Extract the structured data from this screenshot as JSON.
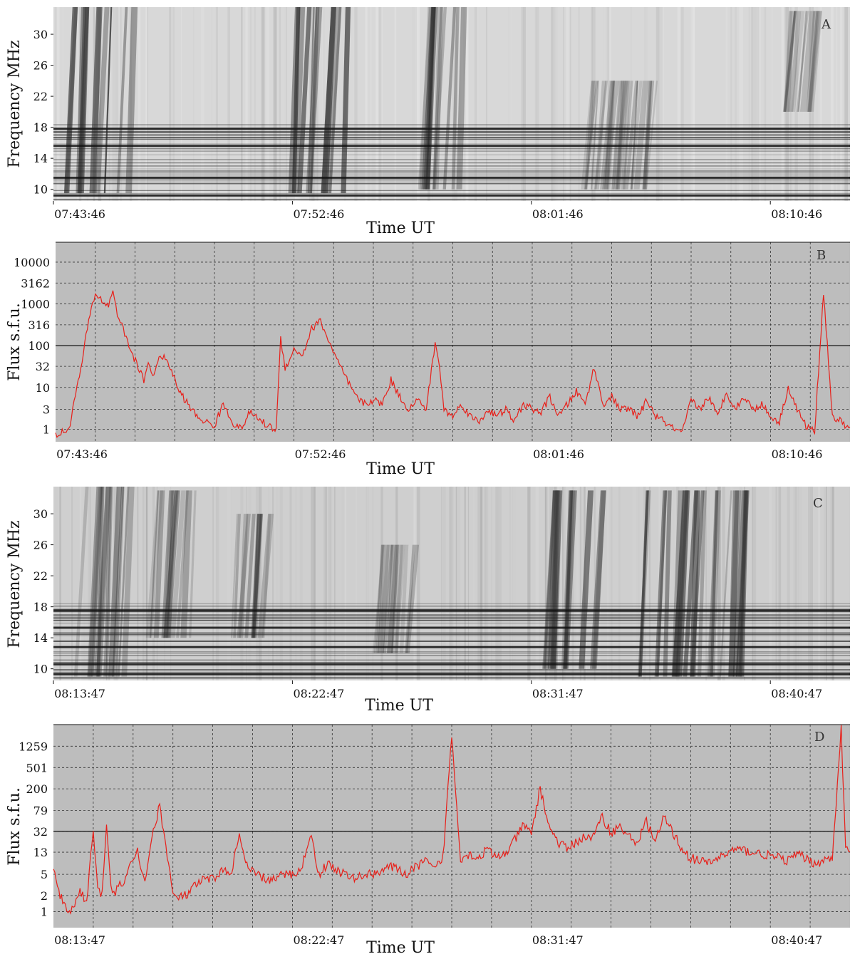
{
  "chart_data": [
    {
      "panel": "A",
      "type": "heatmap",
      "xlabel": "Time UT",
      "ylabel": "Frequency MHz",
      "x_ticks": [
        "07:43:46",
        "07:52:46",
        "08:01:46",
        "08:10:46"
      ],
      "y_ticks": [
        10,
        14,
        18,
        22,
        26,
        30
      ],
      "ylim": [
        8.5,
        33.5
      ],
      "xlim_seconds": [
        0,
        1800
      ],
      "colormap": "grayscale (dark = high intensity)",
      "bursts": [
        {
          "t": 120,
          "f_lo": 9.5,
          "f_hi": 33.5,
          "strength": 1.0
        },
        {
          "t": 600,
          "f_lo": 9.5,
          "f_hi": 33.5,
          "strength": 0.95
        },
        {
          "t": 870,
          "f_lo": 10,
          "f_hi": 33.5,
          "strength": 0.55
        },
        {
          "t": 1240,
          "f_lo": 10,
          "f_hi": 24,
          "strength": 0.4
        },
        {
          "t": 1320,
          "f_lo": 10,
          "f_hi": 24,
          "strength": 0.45
        },
        {
          "t": 1690,
          "f_lo": 20,
          "f_hi": 33,
          "strength": 0.35
        }
      ],
      "interference_bands_MHz": [
        17.8,
        15.6,
        11.5,
        9.2
      ]
    },
    {
      "panel": "B",
      "type": "line",
      "xlabel": "Time UT",
      "ylabel": "Flux s.f.u.",
      "x_ticks": [
        "07:43:46",
        "07:52:46",
        "08:01:46",
        "08:10:46"
      ],
      "y_ticks": [
        "10000",
        "3162",
        "1000",
        "316",
        "100",
        "32",
        "10",
        "3",
        "1"
      ],
      "y_scale": "log",
      "ylim": [
        0.5,
        30000
      ],
      "reference_line": 100,
      "grid": true,
      "series_color": "#e8201a",
      "series": [
        {
          "x_seconds": [
            0,
            30,
            60,
            75,
            90,
            105,
            120,
            130,
            140,
            150,
            160,
            175,
            190,
            200,
            210,
            220,
            240,
            260,
            280,
            300,
            320,
            340,
            360,
            380,
            400,
            420,
            440,
            460,
            480,
            500,
            510,
            520,
            540,
            560,
            580,
            600,
            620,
            640,
            660,
            680,
            700,
            720,
            740,
            760,
            780,
            800,
            820,
            840,
            860,
            870,
            880,
            900,
            920,
            940,
            960,
            980,
            1000,
            1020,
            1040,
            1060,
            1080,
            1100,
            1120,
            1140,
            1160,
            1180,
            1200,
            1220,
            1240,
            1260,
            1280,
            1300,
            1320,
            1340,
            1360,
            1380,
            1400,
            1420,
            1440,
            1460,
            1480,
            1500,
            1520,
            1540,
            1560,
            1580,
            1600,
            1620,
            1640,
            1660,
            1680,
            1700,
            1720,
            1740,
            1760,
            1780,
            1800
          ],
          "values": [
            0.7,
            1.0,
            40,
            400,
            1800,
            1200,
            900,
            2100,
            600,
            300,
            150,
            60,
            25,
            15,
            40,
            20,
            60,
            30,
            8,
            4,
            2,
            1.5,
            1.2,
            4,
            1.5,
            1.0,
            2.5,
            1.8,
            1.2,
            1.0,
            150,
            30,
            80,
            60,
            250,
            400,
            120,
            40,
            15,
            6,
            4,
            5,
            4,
            15,
            6,
            3,
            5,
            3,
            120,
            30,
            3,
            2,
            4,
            2,
            1.5,
            3,
            2,
            3,
            1.5,
            4,
            3,
            2.5,
            6,
            2,
            4,
            8,
            4,
            30,
            4,
            6,
            3,
            3,
            2,
            5,
            2,
            1.5,
            1.0,
            0.8,
            5,
            3,
            6,
            2,
            8,
            3,
            6,
            3,
            4,
            2,
            1.5,
            10,
            3,
            1.2,
            0.9,
            2000,
            2,
            1.5,
            1.0
          ]
        }
      ]
    },
    {
      "panel": "C",
      "type": "heatmap",
      "xlabel": "Time UT",
      "ylabel": "Frequency MHz",
      "x_ticks": [
        "08:13:47",
        "08:22:47",
        "08:31:47",
        "08:40:47"
      ],
      "y_ticks": [
        10,
        14,
        18,
        22,
        26,
        30
      ],
      "ylim": [
        8.5,
        33.5
      ],
      "xlim_seconds": [
        0,
        1800
      ],
      "colormap": "grayscale (dark = high intensity)",
      "bursts": [
        {
          "t": 120,
          "f_lo": 9,
          "f_hi": 33.5,
          "strength": 0.55
        },
        {
          "t": 280,
          "f_lo": 14,
          "f_hi": 33,
          "strength": 0.45
        },
        {
          "t": 440,
          "f_lo": 14,
          "f_hi": 30,
          "strength": 0.45
        },
        {
          "t": 780,
          "f_lo": 12,
          "f_hi": 26,
          "strength": 0.35
        },
        {
          "t": 1180,
          "f_lo": 10,
          "f_hi": 33,
          "strength": 0.75
        },
        {
          "t": 1400,
          "f_lo": 9,
          "f_hi": 33,
          "strength": 0.8
        },
        {
          "t": 1520,
          "f_lo": 9,
          "f_hi": 33,
          "strength": 0.6
        }
      ],
      "interference_bands_MHz": [
        17.5,
        15.3,
        12.8,
        10.6,
        9.3
      ]
    },
    {
      "panel": "D",
      "type": "line",
      "xlabel": "Time UT",
      "ylabel": "Flux s.f.u.",
      "x_ticks": [
        "08:13:47",
        "08:22:47",
        "08:31:47",
        "08:40:47"
      ],
      "y_ticks": [
        "1259",
        "501",
        "200",
        "79",
        "32",
        "13",
        "5",
        "2",
        "1"
      ],
      "y_scale": "log",
      "ylim": [
        0.5,
        3200
      ],
      "reference_line": 32,
      "grid": true,
      "series_color": "#e8201a",
      "series": [
        {
          "x_seconds": [
            0,
            15,
            30,
            45,
            60,
            75,
            90,
            100,
            110,
            120,
            130,
            140,
            150,
            160,
            175,
            190,
            200,
            210,
            220,
            240,
            260,
            270,
            280,
            300,
            320,
            340,
            360,
            380,
            400,
            420,
            440,
            460,
            480,
            500,
            520,
            540,
            560,
            580,
            600,
            620,
            640,
            660,
            680,
            700,
            720,
            740,
            760,
            780,
            800,
            820,
            840,
            860,
            880,
            900,
            920,
            940,
            960,
            980,
            1000,
            1020,
            1040,
            1060,
            1080,
            1100,
            1120,
            1140,
            1160,
            1180,
            1200,
            1220,
            1240,
            1260,
            1280,
            1300,
            1320,
            1340,
            1360,
            1380,
            1400,
            1420,
            1440,
            1460,
            1480,
            1500,
            1520,
            1540,
            1560,
            1580,
            1600,
            1620,
            1640,
            1660,
            1680,
            1700,
            1720,
            1740,
            1760,
            1780,
            1790,
            1800
          ],
          "values": [
            6,
            2,
            1.0,
            1.2,
            2.5,
            1.5,
            35,
            3,
            2,
            35,
            3,
            2,
            4,
            3,
            8,
            15,
            5,
            4,
            20,
            100,
            8,
            2,
            1.8,
            2,
            3,
            4,
            4,
            6,
            5,
            25,
            6,
            5,
            4,
            4,
            5,
            5,
            6,
            30,
            5,
            8,
            6,
            5,
            4,
            5,
            5,
            6,
            7,
            6,
            5,
            7,
            9,
            6,
            10,
            2000,
            10,
            12,
            10,
            15,
            10,
            12,
            20,
            40,
            30,
            200,
            40,
            20,
            15,
            20,
            25,
            25,
            60,
            30,
            40,
            25,
            20,
            50,
            20,
            60,
            30,
            15,
            10,
            9,
            8,
            10,
            12,
            15,
            14,
            13,
            12,
            11,
            10,
            9,
            12,
            10,
            8,
            9,
            10,
            3000,
            15,
            12
          ]
        }
      ]
    }
  ],
  "panels": {
    "A": {
      "letter": "A",
      "ylabel": "Frequency MHz",
      "xlabel": "Time UT"
    },
    "B": {
      "letter": "B",
      "ylabel": "Flux s.f.u.",
      "xlabel": "Time UT"
    },
    "C": {
      "letter": "C",
      "ylabel": "Frequency MHz",
      "xlabel": "Time UT"
    },
    "D": {
      "letter": "D",
      "ylabel": "Flux s.f.u.",
      "xlabel": "Time UT"
    }
  }
}
